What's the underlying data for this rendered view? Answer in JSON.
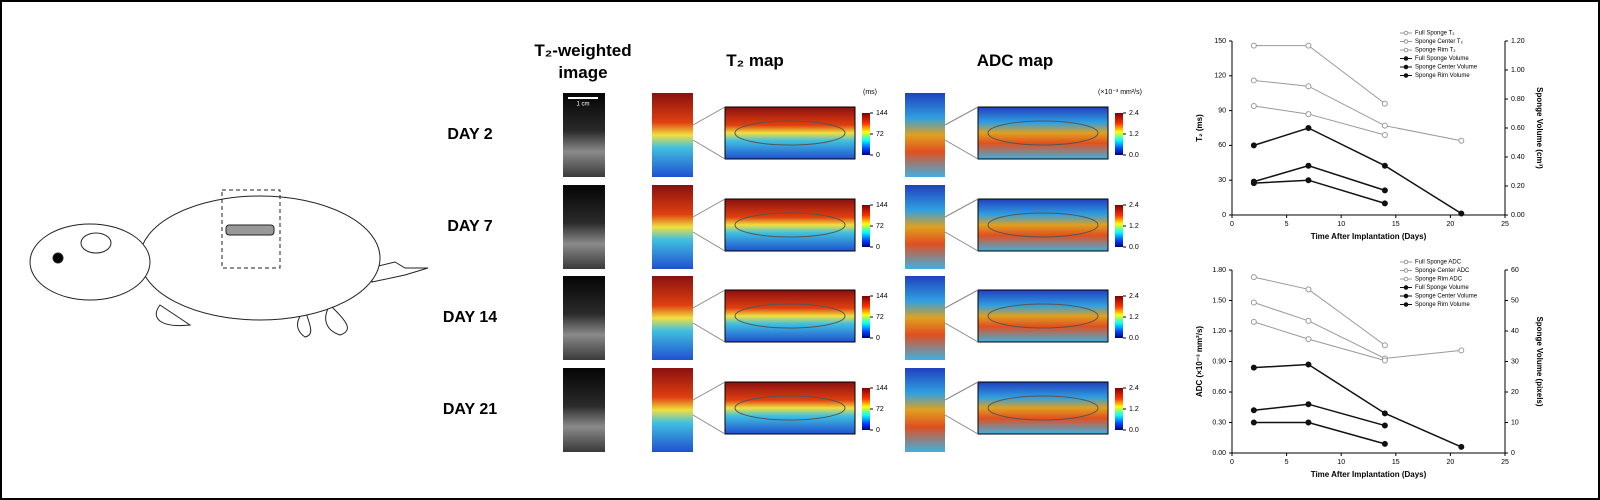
{
  "figure": {
    "headers": [
      "T₂-weighted image",
      "T₂ map",
      "ADC map"
    ],
    "rows": [
      "DAY 2",
      "DAY 7",
      "DAY 14",
      "DAY 21"
    ],
    "scale_bar": "1 cm",
    "t2_colorbar": {
      "unit": "(ms)",
      "ticks": [
        144,
        72,
        0
      ]
    },
    "adc_colorbar": {
      "unit": "(×10⁻³ mm²/s)",
      "ticks": [
        2.4,
        1.2,
        {
          "value": 0,
          "label": "0.0"
        }
      ]
    }
  },
  "chart_data": [
    {
      "type": "line",
      "xlabel": "Time After Implantation (Days)",
      "ylabel": "T₂ (ms)",
      "y2label": "Sponge Volume (cm³)",
      "x": [
        2,
        7,
        14,
        21
      ],
      "xlim": [
        0,
        25
      ],
      "xticks": [
        0,
        5,
        10,
        15,
        20,
        25
      ],
      "ylim": [
        0,
        150
      ],
      "yticks": [
        0,
        30,
        60,
        90,
        120,
        150
      ],
      "y2lim": [
        0,
        1.2
      ],
      "y2ticks": [
        {
          "value": 0,
          "label": "0.00"
        },
        {
          "value": 0.2,
          "label": "0.20"
        },
        {
          "value": 0.4,
          "label": "0.40"
        },
        {
          "value": 0.6,
          "label": "0.60"
        },
        {
          "value": 0.8,
          "label": "0.80"
        },
        {
          "value": 1,
          "label": "1.00"
        },
        {
          "value": 1.2,
          "label": "1.20"
        }
      ],
      "series": [
        {
          "name": "Full Sponge T₂",
          "color": "#999999",
          "marker": "open",
          "values": [
            116,
            111,
            77,
            64
          ]
        },
        {
          "name": "Sponge Center T₂",
          "color": "#999999",
          "marker": "open",
          "values": [
            146,
            146,
            96,
            null
          ]
        },
        {
          "name": "Sponge Rim T₂",
          "color": "#999999",
          "marker": "open",
          "values": [
            94,
            87,
            69,
            null
          ]
        },
        {
          "name": "Full Sponge Volume",
          "color": "#111111",
          "marker": "filled",
          "axis": "y2",
          "values": [
            0.48,
            0.6,
            0.34,
            0.01
          ]
        },
        {
          "name": "Sponge Center Volume",
          "color": "#111111",
          "marker": "filled",
          "axis": "y2",
          "values": [
            0.23,
            0.34,
            0.17,
            null
          ]
        },
        {
          "name": "Sponge Rim Volume",
          "color": "#111111",
          "marker": "filled",
          "axis": "y2",
          "values": [
            0.22,
            0.24,
            0.08,
            null
          ]
        }
      ]
    },
    {
      "type": "line",
      "xlabel": "Time After Implantation (Days)",
      "ylabel": "ADC (×10⁻³ mm²/s)",
      "y2label": "Sponge Volume (pixels)",
      "x": [
        2,
        7,
        14,
        21
      ],
      "xlim": [
        0,
        25
      ],
      "xticks": [
        0,
        5,
        10,
        15,
        20,
        25
      ],
      "ylim": [
        0,
        1.8
      ],
      "yticks": [
        {
          "value": 0,
          "label": "0.00"
        },
        {
          "value": 0.3,
          "label": "0.30"
        },
        {
          "value": 0.6,
          "label": "0.60"
        },
        {
          "value": 0.9,
          "label": "0.90"
        },
        {
          "value": 1.2,
          "label": "1.20"
        },
        {
          "value": 1.5,
          "label": "1.50"
        },
        {
          "value": 1.8,
          "label": "1.80"
        }
      ],
      "y2lim": [
        0,
        60
      ],
      "y2ticks": [
        0,
        10,
        20,
        30,
        40,
        50,
        60
      ],
      "series": [
        {
          "name": "Full Sponge ADC",
          "color": "#999999",
          "marker": "open",
          "values": [
            1.48,
            1.3,
            0.93,
            1.01
          ]
        },
        {
          "name": "Sponge Center ADC",
          "color": "#999999",
          "marker": "open",
          "values": [
            1.73,
            1.61,
            1.06,
            null
          ]
        },
        {
          "name": "Sponge Rim ADC",
          "color": "#999999",
          "marker": "open",
          "values": [
            1.29,
            1.12,
            0.91,
            null
          ]
        },
        {
          "name": "Full Sponge Volume",
          "color": "#111111",
          "marker": "filled",
          "axis": "y2",
          "values": [
            28,
            29,
            13,
            2
          ]
        },
        {
          "name": "Sponge Center Volume",
          "color": "#111111",
          "marker": "filled",
          "axis": "y2",
          "values": [
            14,
            16,
            9,
            null
          ]
        },
        {
          "name": "Sponge Rim Volume",
          "color": "#111111",
          "marker": "filled",
          "axis": "y2",
          "values": [
            10,
            10,
            3,
            null
          ]
        }
      ]
    }
  ]
}
